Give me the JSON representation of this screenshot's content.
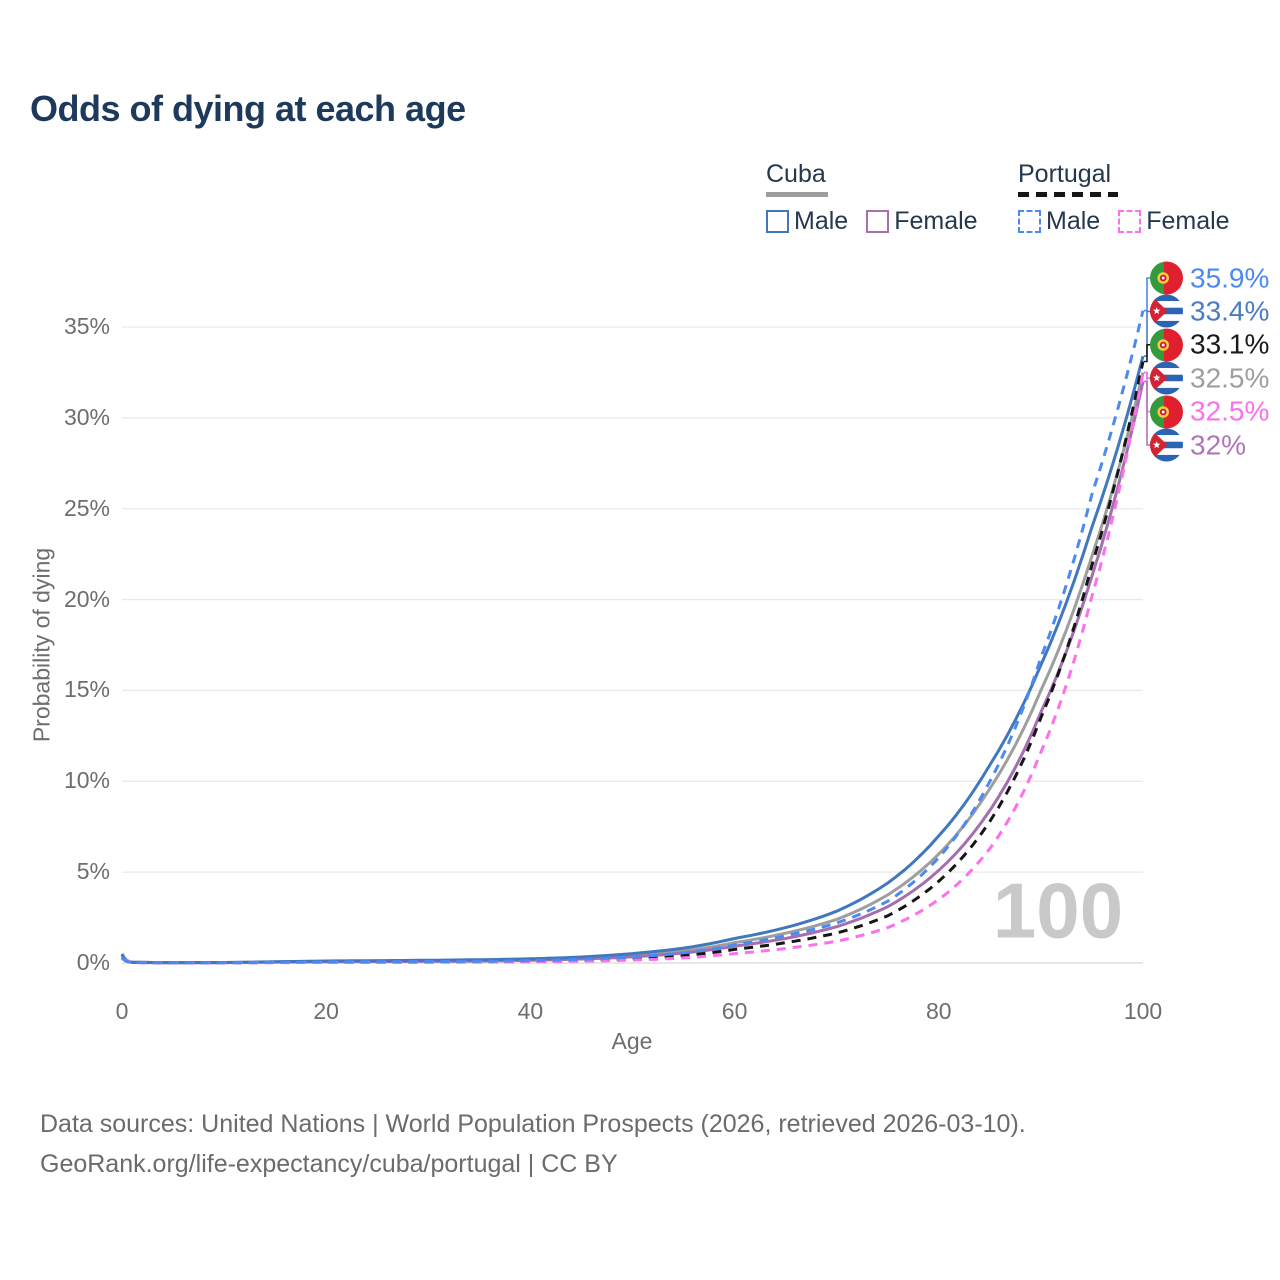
{
  "header": {
    "title": "Odds of dying at each age"
  },
  "legend": {
    "groups": [
      {
        "label": "Cuba",
        "line_style": "solid",
        "line_color": "#9e9e9e",
        "items": [
          {
            "label": "Male",
            "color": "#4077bd",
            "style": "solid"
          },
          {
            "label": "Female",
            "color": "#ab6fad",
            "style": "solid"
          }
        ]
      },
      {
        "label": "Portugal",
        "line_style": "dashed",
        "line_color": "#161616",
        "items": [
          {
            "label": "Male",
            "color": "#4b8af2",
            "style": "dashed"
          },
          {
            "label": "Female",
            "color": "#fc70ee",
            "style": "dashed"
          }
        ]
      }
    ]
  },
  "chart_data": {
    "type": "line",
    "title": "Odds of dying at each age",
    "xlabel": "Age",
    "ylabel": "Probability of dying",
    "xlim": [
      0,
      100
    ],
    "ylim_percent": [
      0,
      35
    ],
    "xticks": [
      0,
      20,
      40,
      60,
      80,
      100
    ],
    "yticks": [
      0,
      5,
      10,
      15,
      20,
      25,
      30,
      35
    ],
    "ytick_labels": [
      "0%",
      "5%",
      "10%",
      "15%",
      "20%",
      "25%",
      "30%",
      "35%"
    ],
    "grid": true,
    "watermark": "100",
    "x_ages": [
      0,
      1,
      5,
      10,
      15,
      20,
      25,
      30,
      35,
      40,
      45,
      50,
      55,
      60,
      65,
      70,
      75,
      80,
      85,
      90,
      95,
      100
    ],
    "series": [
      {
        "name": "Portugal Male",
        "country": "portugal",
        "sex": "male",
        "color": "#4b8af2",
        "dash": "dashed",
        "values_percent": [
          0.3,
          0.03,
          0.01,
          0.01,
          0.04,
          0.06,
          0.07,
          0.08,
          0.09,
          0.13,
          0.2,
          0.33,
          0.56,
          1.0,
          1.5,
          2.2,
          3.4,
          5.8,
          10.0,
          16.8,
          25.8,
          35.9
        ]
      },
      {
        "name": "Cuba Male",
        "country": "cuba",
        "sex": "male",
        "color": "#4077bd",
        "dash": "solid",
        "values_percent": [
          0.5,
          0.04,
          0.02,
          0.03,
          0.07,
          0.11,
          0.13,
          0.15,
          0.18,
          0.23,
          0.33,
          0.52,
          0.82,
          1.35,
          1.95,
          2.85,
          4.4,
          7.0,
          10.9,
          16.4,
          24.0,
          33.4
        ]
      },
      {
        "name": "Portugal",
        "country": "portugal",
        "sex": "both",
        "color": "#161616",
        "dash": "dashed",
        "values_percent": [
          0.28,
          0.03,
          0.01,
          0.01,
          0.03,
          0.04,
          0.05,
          0.05,
          0.06,
          0.09,
          0.14,
          0.24,
          0.41,
          0.75,
          1.12,
          1.65,
          2.6,
          4.5,
          7.8,
          13.5,
          21.9,
          33.1
        ]
      },
      {
        "name": "Cuba",
        "country": "cuba",
        "sex": "both",
        "color": "#9e9e9e",
        "dash": "solid",
        "values_percent": [
          0.45,
          0.04,
          0.02,
          0.02,
          0.06,
          0.09,
          0.1,
          0.12,
          0.14,
          0.19,
          0.27,
          0.42,
          0.67,
          1.12,
          1.64,
          2.4,
          3.75,
          6.0,
          9.6,
          15.0,
          22.4,
          32.5
        ]
      },
      {
        "name": "Portugal Female",
        "country": "portugal",
        "sex": "female",
        "color": "#fc70ee",
        "dash": "dashed",
        "values_percent": [
          0.25,
          0.02,
          0.01,
          0.01,
          0.02,
          0.03,
          0.03,
          0.04,
          0.05,
          0.06,
          0.1,
          0.16,
          0.28,
          0.52,
          0.8,
          1.2,
          1.95,
          3.5,
          6.3,
          11.6,
          20.2,
          32.5
        ]
      },
      {
        "name": "Cuba Female",
        "country": "cuba",
        "sex": "female",
        "color": "#a46fae",
        "dash": "solid",
        "values_percent": [
          0.4,
          0.03,
          0.01,
          0.02,
          0.05,
          0.07,
          0.08,
          0.09,
          0.11,
          0.15,
          0.22,
          0.34,
          0.55,
          0.93,
          1.35,
          2.0,
          3.1,
          5.1,
          8.4,
          13.8,
          21.3,
          32.0
        ]
      }
    ],
    "draw_order": [
      3,
      5,
      1,
      2,
      4,
      0
    ],
    "end_labels": [
      {
        "text": "35.9%",
        "value": 35.9,
        "color": "#4b8af2",
        "flag": "portugal"
      },
      {
        "text": "33.4%",
        "value": 33.4,
        "color": "#4a7bc4",
        "flag": "cuba"
      },
      {
        "text": "33.1%",
        "value": 33.1,
        "color": "#1a1a1a",
        "flag": "portugal"
      },
      {
        "text": "32.5%",
        "value": 32.5,
        "color": "#9e9e9e",
        "flag": "cuba"
      },
      {
        "text": "32.5%",
        "value": 32.5,
        "color": "#fc70ee",
        "flag": "portugal"
      },
      {
        "text": "32%",
        "value": 32.0,
        "color": "#ae77b5",
        "flag": "cuba"
      }
    ],
    "flags": {
      "portugal": {
        "green": "#349a3c",
        "red": "#e01f2f",
        "emblem_yellow": "#f7c843",
        "emblem_red": "#c91a2b",
        "emblem_white": "#ffffff"
      },
      "cuba": {
        "blue": "#2a64b2",
        "white": "#ffffff",
        "triangle_red": "#d42332",
        "star_white": "#ffffff"
      }
    },
    "colors": {
      "grid": "#e9e9e9",
      "baseline": "#d7d7d7",
      "tick_text": "#6e6e6e",
      "title": "#1d3a5c",
      "watermark": "#c9c9c9"
    }
  },
  "footer": {
    "line1": "Data sources: United Nations | World Population Prospects (2026, retrieved 2026-03-10).",
    "line2": "GeoRank.org/life-expectancy/cuba/portugal | CC BY"
  }
}
